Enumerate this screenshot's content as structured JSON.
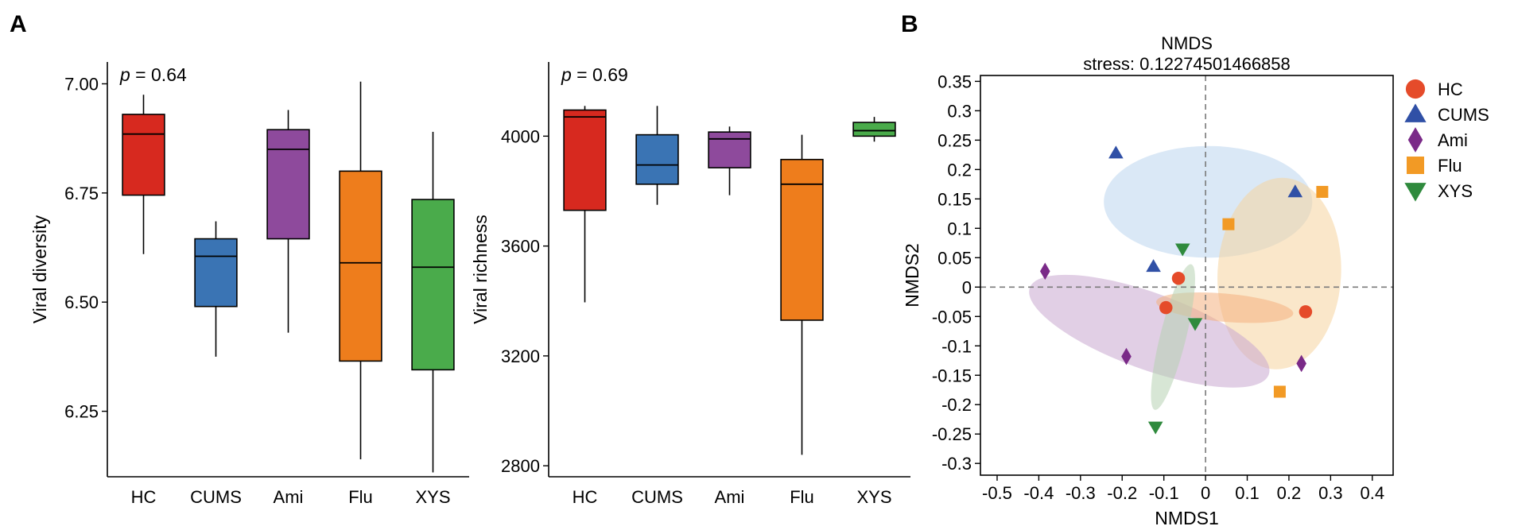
{
  "panels": {
    "a": "A",
    "b": "B"
  },
  "groups": [
    "HC",
    "CUMS",
    "Ami",
    "Flu",
    "XYS"
  ],
  "colors": {
    "HC": "#d7291f",
    "CUMS": "#3a74b4",
    "Ami": "#8e4a9c",
    "Flu": "#ee7d1c",
    "XYS": "#4aab4b"
  },
  "nmds_colors": {
    "HC": "#e54b2a",
    "CUMS": "#3050a6",
    "Ami": "#7a2a88",
    "Flu": "#f29a25",
    "XYS": "#2f8a3d"
  },
  "ellipse_colors": {
    "HC": "#f4b17f",
    "CUMS": "#bcd6ee",
    "Ami": "#c9a7cf",
    "Flu": "#f5d49e",
    "XYS": "#b6d2b2"
  },
  "chart_data": [
    {
      "type": "box",
      "title": "",
      "ylabel": "Viral diversity",
      "annotation": {
        "p_label": "p",
        "p_rest": " = 0.64"
      },
      "ylim": [
        6.1,
        7.05
      ],
      "yticks": [
        6.25,
        6.5,
        6.75,
        7.0
      ],
      "ytick_labels": [
        "6.25",
        "6.50",
        "6.75",
        "7.00"
      ],
      "categories": [
        "HC",
        "CUMS",
        "Ami",
        "Flu",
        "XYS"
      ],
      "boxes": [
        {
          "name": "HC",
          "whisker_low": 6.61,
          "q1": 6.745,
          "median": 6.885,
          "q3": 6.93,
          "whisker_high": 6.975
        },
        {
          "name": "CUMS",
          "whisker_low": 6.375,
          "q1": 6.49,
          "median": 6.605,
          "q3": 6.645,
          "whisker_high": 6.685
        },
        {
          "name": "Ami",
          "whisker_low": 6.43,
          "q1": 6.645,
          "median": 6.85,
          "q3": 6.895,
          "whisker_high": 6.94
        },
        {
          "name": "Flu",
          "whisker_low": 6.14,
          "q1": 6.365,
          "median": 6.59,
          "q3": 6.8,
          "whisker_high": 7.005
        },
        {
          "name": "XYS",
          "whisker_low": 6.11,
          "q1": 6.345,
          "median": 6.58,
          "q3": 6.735,
          "whisker_high": 6.89
        }
      ]
    },
    {
      "type": "box",
      "title": "",
      "ylabel": "Viral richness",
      "annotation": {
        "p_label": "p",
        "p_rest": " = 0.69"
      },
      "ylim": [
        2760,
        4270
      ],
      "yticks": [
        2800,
        3200,
        3600,
        4000
      ],
      "ytick_labels": [
        "2800",
        "3200",
        "3600",
        "4000"
      ],
      "categories": [
        "HC",
        "CUMS",
        "Ami",
        "Flu",
        "XYS"
      ],
      "boxes": [
        {
          "name": "HC",
          "whisker_low": 3395,
          "q1": 3730,
          "median": 4070,
          "q3": 4095,
          "whisker_high": 4110
        },
        {
          "name": "CUMS",
          "whisker_low": 3750,
          "q1": 3825,
          "median": 3895,
          "q3": 4005,
          "whisker_high": 4110
        },
        {
          "name": "Ami",
          "whisker_low": 3785,
          "q1": 3885,
          "median": 3990,
          "q3": 4015,
          "whisker_high": 4035
        },
        {
          "name": "Flu",
          "whisker_low": 2840,
          "q1": 3330,
          "median": 3825,
          "q3": 3915,
          "whisker_high": 4005
        },
        {
          "name": "XYS",
          "whisker_low": 3980,
          "q1": 4000,
          "median": 4020,
          "q3": 4050,
          "whisker_high": 4070
        }
      ]
    },
    {
      "type": "scatter",
      "title": "NMDS",
      "subtitle": "stress: 0.12274501466858",
      "xlabel": "NMDS1",
      "ylabel": "NMDS2",
      "xlim": [
        -0.54,
        0.45
      ],
      "ylim": [
        -0.32,
        0.36
      ],
      "xticks": [
        -0.5,
        -0.4,
        -0.3,
        -0.2,
        -0.1,
        0,
        0.1,
        0.2,
        0.3,
        0.4
      ],
      "xtick_labels": [
        "-0.5",
        "-0.4",
        "-0.3",
        "-0.2",
        "-0.1",
        "0",
        "0.1",
        "0.2",
        "0.3",
        "0.4"
      ],
      "yticks": [
        0.35,
        0.3,
        0.25,
        0.2,
        0.15,
        0.1,
        0.05,
        0,
        -0.05,
        -0.1,
        -0.15,
        -0.2,
        -0.25,
        -0.3
      ],
      "ytick_labels": [
        "0.35",
        "0.3",
        "0.25",
        "0.2",
        "0.15",
        "0.1",
        "0.05",
        "0",
        "-0.05",
        "-0.1",
        "-0.15",
        "-0.2",
        "-0.25",
        "-0.3"
      ],
      "legend": {
        "position": "right",
        "entries": [
          {
            "name": "HC",
            "shape": "circle"
          },
          {
            "name": "CUMS",
            "shape": "triangle-up"
          },
          {
            "name": "Ami",
            "shape": "diamond"
          },
          {
            "name": "Flu",
            "shape": "square"
          },
          {
            "name": "XYS",
            "shape": "triangle-down"
          }
        ]
      },
      "points": [
        {
          "group": "HC",
          "x": -0.065,
          "y": 0.015
        },
        {
          "group": "HC",
          "x": -0.095,
          "y": -0.035
        },
        {
          "group": "HC",
          "x": 0.24,
          "y": -0.042
        },
        {
          "group": "CUMS",
          "x": -0.215,
          "y": 0.228
        },
        {
          "group": "CUMS",
          "x": -0.125,
          "y": 0.035
        },
        {
          "group": "CUMS",
          "x": 0.215,
          "y": 0.162
        },
        {
          "group": "Ami",
          "x": -0.385,
          "y": 0.027
        },
        {
          "group": "Ami",
          "x": -0.19,
          "y": -0.118
        },
        {
          "group": "Ami",
          "x": 0.23,
          "y": -0.13
        },
        {
          "group": "Flu",
          "x": 0.055,
          "y": 0.107
        },
        {
          "group": "Flu",
          "x": 0.28,
          "y": 0.162
        },
        {
          "group": "Flu",
          "x": 0.178,
          "y": -0.178
        },
        {
          "group": "XYS",
          "x": -0.055,
          "y": 0.065
        },
        {
          "group": "XYS",
          "x": -0.025,
          "y": -0.062
        },
        {
          "group": "XYS",
          "x": -0.12,
          "y": -0.238
        }
      ],
      "ellipses": [
        {
          "group": "CUMS",
          "cx": 0.006,
          "cy": 0.145,
          "rx": 0.25,
          "ry": 0.095,
          "angle": 0
        },
        {
          "group": "Flu",
          "cx": 0.177,
          "cy": 0.023,
          "rx": 0.23,
          "ry": 0.105,
          "angle": 87
        },
        {
          "group": "Ami",
          "cx": -0.135,
          "cy": -0.075,
          "rx": 0.305,
          "ry": 0.065,
          "angle": -20
        },
        {
          "group": "HC",
          "cx": 0.046,
          "cy": -0.035,
          "rx": 0.165,
          "ry": 0.024,
          "angle": -5
        },
        {
          "group": "XYS",
          "cx": -0.078,
          "cy": -0.085,
          "rx": 0.18,
          "ry": 0.022,
          "angle": 76
        }
      ]
    }
  ]
}
